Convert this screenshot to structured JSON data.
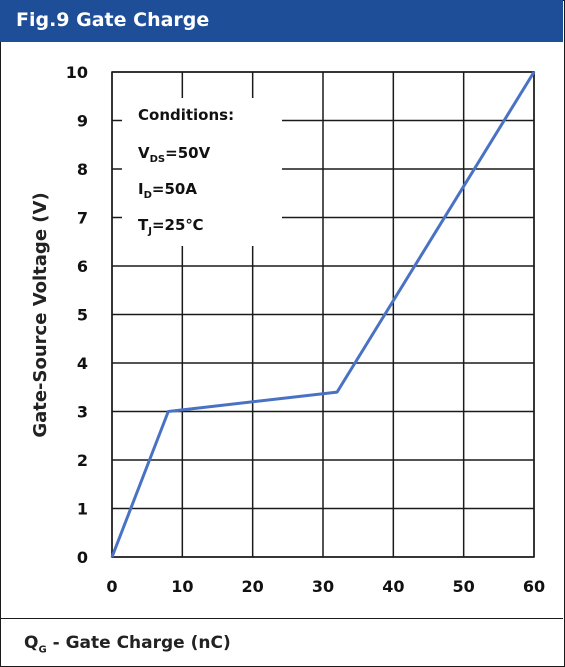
{
  "chart_data": {
    "type": "line",
    "title": "Fig.9 Gate Charge",
    "xlabel": {
      "main": "Q",
      "sub": "G",
      "rest": " - Gate Charge (nC)"
    },
    "ylabel": "Gate-Source Voltage (V)",
    "xlim": [
      0,
      60
    ],
    "ylim": [
      0,
      10
    ],
    "xticks": [
      0,
      10,
      20,
      30,
      40,
      50,
      60
    ],
    "yticks": [
      0,
      1,
      2,
      3,
      4,
      5,
      6,
      7,
      8,
      9,
      10
    ],
    "grid": true,
    "line_color": "#4a72c4",
    "title_bar_color": "#1f4e99",
    "series": [
      {
        "x": [
          0,
          8,
          32,
          60
        ],
        "y": [
          0,
          3.0,
          3.4,
          10
        ]
      }
    ],
    "conditions": {
      "heading": "Conditions:",
      "lines": [
        {
          "main": "V",
          "sub": "DS",
          "rest": "=50V"
        },
        {
          "main": "I",
          "sub": "D",
          "rest": "=50A"
        },
        {
          "main": "T",
          "sub": "J",
          "rest": "=25℃"
        }
      ]
    }
  }
}
